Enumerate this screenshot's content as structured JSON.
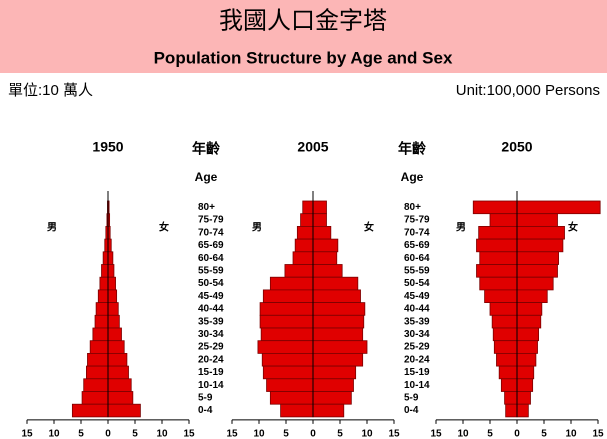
{
  "header": {
    "title": "我國人口金字塔",
    "subtitle": "Population Structure by Age and Sex",
    "unit_zh": "單位:10 萬人",
    "unit_en": "Unit:100,000 Persons"
  },
  "age_axis": {
    "title": "年齡",
    "subtitle": "Age",
    "categories": [
      "80+",
      "75-79",
      "70-74",
      "65-69",
      "60-64",
      "55-59",
      "50-54",
      "45-49",
      "40-44",
      "35-39",
      "30-34",
      "25-29",
      "20-24",
      "15-19",
      "10-14",
      "5-9",
      "0-4"
    ]
  },
  "chart_data": [
    {
      "type": "pyramid",
      "title": "1950",
      "xlim": [
        -15,
        15
      ],
      "xticks": [
        {
          "value": -15,
          "label": "15"
        },
        {
          "value": -10,
          "label": "10"
        },
        {
          "value": -5,
          "label": "5"
        },
        0,
        5,
        10,
        15
      ],
      "series": [
        {
          "name": "男",
          "color": "#e00000",
          "values": [
            0.1,
            0.2,
            0.4,
            0.6,
            0.9,
            1.2,
            1.5,
            1.8,
            2.2,
            2.4,
            2.8,
            3.3,
            3.8,
            4.0,
            4.5,
            4.8,
            6.6
          ]
        },
        {
          "name": "女",
          "color": "#e00000",
          "values": [
            0.2,
            0.3,
            0.4,
            0.6,
            0.9,
            1.1,
            1.4,
            1.6,
            1.9,
            2.1,
            2.5,
            3.0,
            3.5,
            3.8,
            4.3,
            4.6,
            6.0
          ]
        }
      ]
    },
    {
      "type": "pyramid",
      "title": "2005",
      "xlim": [
        -15,
        15
      ],
      "xticks": [
        {
          "value": -15,
          "label": "15"
        },
        {
          "value": -10,
          "label": "10"
        },
        {
          "value": -5,
          "label": "5"
        },
        0,
        5,
        10,
        15
      ],
      "series": [
        {
          "name": "男",
          "color": "#e00000",
          "values": [
            1.9,
            2.3,
            2.9,
            3.3,
            3.7,
            5.2,
            7.9,
            9.2,
            9.8,
            9.8,
            9.6,
            10.2,
            9.4,
            9.2,
            8.6,
            7.9,
            6.0
          ]
        },
        {
          "name": "女",
          "color": "#e00000",
          "values": [
            2.5,
            2.5,
            3.3,
            4.6,
            4.4,
            5.4,
            8.3,
            8.8,
            9.6,
            9.4,
            9.2,
            10.0,
            9.2,
            7.9,
            7.5,
            7.1,
            5.7
          ]
        }
      ]
    },
    {
      "type": "pyramid",
      "title": "2050",
      "xlim": [
        -15,
        15
      ],
      "xticks": [
        {
          "value": -15,
          "label": "15"
        },
        {
          "value": -10,
          "label": "10"
        },
        {
          "value": -5,
          "label": "5"
        },
        0,
        5,
        10,
        15
      ],
      "series": [
        {
          "name": "男",
          "color": "#e00000",
          "values": [
            8.1,
            5.0,
            7.1,
            7.5,
            6.9,
            7.5,
            6.9,
            6.0,
            5.0,
            4.6,
            4.4,
            4.2,
            3.8,
            3.3,
            2.9,
            2.3,
            2.1
          ]
        },
        {
          "name": "女",
          "color": "#e00000",
          "values": [
            15.4,
            7.5,
            8.8,
            8.5,
            7.7,
            7.5,
            6.7,
            5.6,
            4.6,
            4.4,
            4.0,
            3.8,
            3.5,
            3.1,
            2.9,
            2.5,
            2.1
          ]
        }
      ]
    }
  ]
}
